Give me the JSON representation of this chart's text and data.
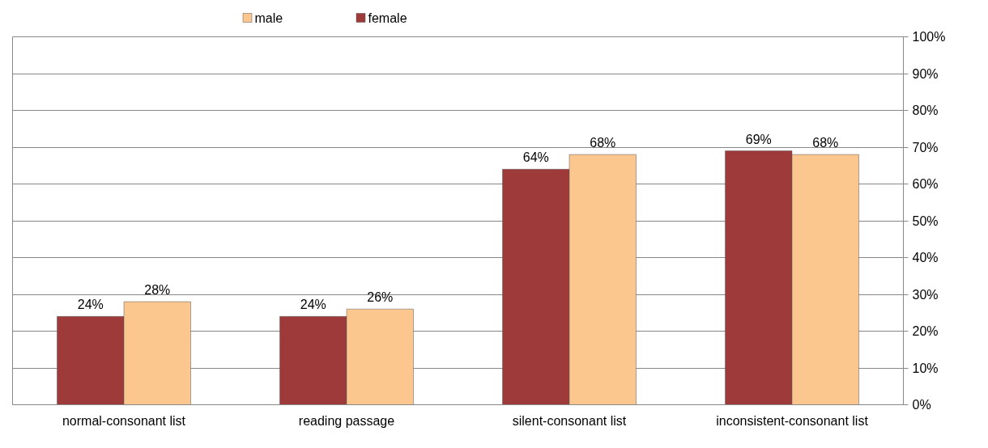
{
  "chart_data": {
    "type": "bar",
    "categories": [
      "normal-consonant list",
      "reading passage",
      "silent-consonant list",
      "inconsistent-consonant list"
    ],
    "series": [
      {
        "name": "female",
        "color": "#9e3a3a",
        "values": [
          24,
          24,
          64,
          69
        ],
        "value_labels": [
          "24%",
          "24%",
          "64%",
          "69%"
        ]
      },
      {
        "name": "male",
        "color": "#fbc78f",
        "values": [
          28,
          26,
          68,
          68
        ],
        "value_labels": [
          "28%",
          "26%",
          "68%",
          "68%"
        ]
      }
    ],
    "ylim": [
      0,
      100
    ],
    "yticks": [
      {
        "value": 0,
        "label": "0%"
      },
      {
        "value": 10,
        "label": "10%"
      },
      {
        "value": 20,
        "label": "20%"
      },
      {
        "value": 30,
        "label": "30%"
      },
      {
        "value": 40,
        "label": "40%"
      },
      {
        "value": 50,
        "label": "50%"
      },
      {
        "value": 60,
        "label": "60%"
      },
      {
        "value": 70,
        "label": "70%"
      },
      {
        "value": 80,
        "label": "80%"
      },
      {
        "value": 90,
        "label": "90%"
      },
      {
        "value": 100,
        "label": "100%"
      }
    ],
    "grid": "y",
    "legend": "top"
  }
}
